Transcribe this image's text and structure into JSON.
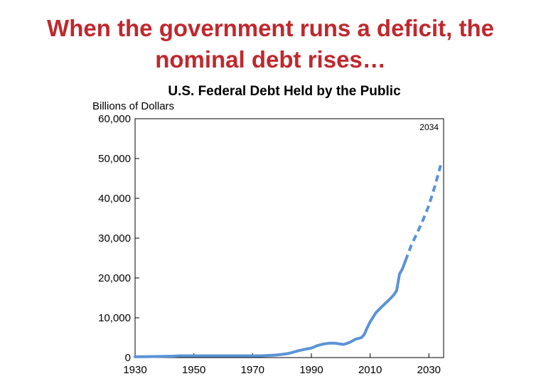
{
  "slide": {
    "title_line1": "When the government runs a deficit, the",
    "title_line2": "nominal debt rises…"
  },
  "colors": {
    "title": "#c0282d",
    "series": "#5b93d6"
  },
  "chart_data": {
    "type": "line",
    "title": "U.S. Federal Debt Held by the Public",
    "ylabel": "Billions of Dollars",
    "xlabel": "",
    "xlim": [
      1930,
      2035
    ],
    "ylim": [
      0,
      60000
    ],
    "xticks": [
      1930,
      1950,
      1970,
      1990,
      2010,
      2030
    ],
    "xtick_labels": [
      "1930",
      "1950",
      "1970",
      "1990",
      "2010",
      "2030"
    ],
    "yticks": [
      0,
      10000,
      20000,
      30000,
      40000,
      50000,
      60000
    ],
    "ytick_labels": [
      "0",
      "10,000",
      "20,000",
      "30,000",
      "40,000",
      "50,000",
      "60,000"
    ],
    "grid": false,
    "annotation": "2034",
    "series": [
      {
        "style": "solid",
        "x": [
          1930,
          1935,
          1940,
          1943,
          1945,
          1946,
          1950,
          1955,
          1960,
          1965,
          1970,
          1973,
          1976,
          1978,
          1980,
          1982,
          1984,
          1986,
          1988,
          1990,
          1992,
          1994,
          1996,
          1998,
          2000,
          2001,
          2003,
          2005,
          2007,
          2008,
          2009,
          2010,
          2012,
          2014,
          2016,
          2018,
          2019,
          2020,
          2021,
          2022
        ],
        "y": [
          200,
          250,
          300,
          350,
          450,
          450,
          450,
          450,
          450,
          450,
          450,
          450,
          550,
          650,
          800,
          1000,
          1400,
          1800,
          2100,
          2400,
          3000,
          3400,
          3600,
          3600,
          3400,
          3300,
          3800,
          4600,
          5000,
          5800,
          7500,
          9000,
          11300,
          12800,
          14200,
          15700,
          16800,
          21000,
          22300,
          24300
        ]
      },
      {
        "style": "dashed",
        "x": [
          2022,
          2024,
          2026,
          2028,
          2030,
          2032,
          2034
        ],
        "y": [
          24300,
          28200,
          31300,
          34600,
          38200,
          43000,
          48300
        ]
      }
    ]
  }
}
